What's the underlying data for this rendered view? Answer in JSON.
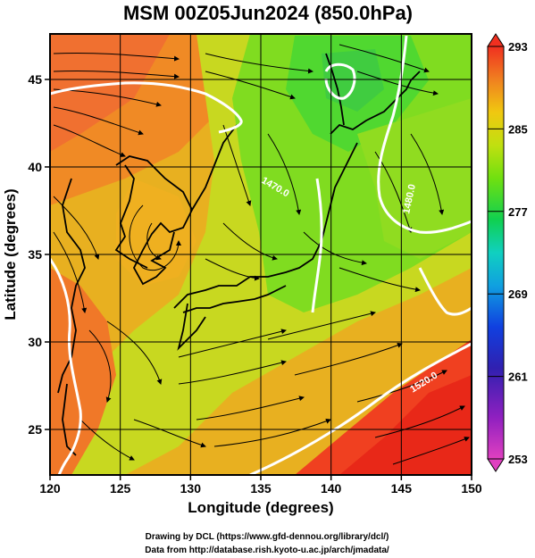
{
  "chart_data": {
    "type": "heatmap",
    "title": "MSM 00Z05Jun2024 (850.0hPa)",
    "xlabel": "Longitude (degrees)",
    "ylabel": "Latitude  (degrees)",
    "xlim": [
      120,
      150
    ],
    "ylim": [
      22.4,
      47.6
    ],
    "x_ticks": [
      "120",
      "125",
      "130",
      "135",
      "140",
      "145",
      "150"
    ],
    "y_ticks": [
      "25",
      "30",
      "35",
      "40",
      "45"
    ],
    "grid": true,
    "colorbar": {
      "range": [
        253,
        293
      ],
      "ticks": [
        "293",
        "285",
        "277",
        "269",
        "261",
        "253"
      ],
      "colors": [
        "#e040c0",
        "#9020c0",
        "#3020b0",
        "#1040e0",
        "#10a0e0",
        "#10d0c0",
        "#10d050",
        "#70e010",
        "#c0e010",
        "#f0c810",
        "#f08020",
        "#f03020"
      ]
    },
    "contours": [
      {
        "label": "1470.0",
        "color": "#ffffff"
      },
      {
        "label": "1480.0",
        "color": "#ffffff"
      },
      {
        "label": "1520.0",
        "color": "#ffffff"
      }
    ],
    "overlays": [
      "wind-streamlines",
      "coastlines"
    ]
  },
  "credits": {
    "line1": "Drawing by DCL (https://www.gfd-dennou.org/library/dcl/)",
    "line2": "Data from http://database.rish.kyoto-u.ac.jp/arch/jmadata/"
  }
}
